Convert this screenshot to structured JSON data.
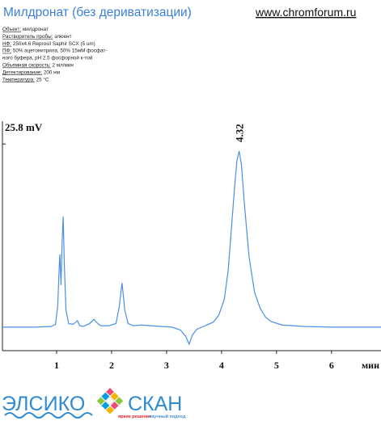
{
  "header": {
    "title": "Милдронат (без дериватизации)",
    "site": "www.chromforum.ru"
  },
  "method": {
    "lines": [
      {
        "label": "Объект:",
        "text": "милдронат"
      },
      {
        "label": "Растворитель пробы:",
        "text": "элюент"
      },
      {
        "label": "НФ:",
        "text": "250x4.6 Reprosil Saphir SCX (5 um)"
      },
      {
        "label": "ПФ:",
        "text": "50% ацетонитрила, 50% 15мМ фосфат-"
      },
      {
        "text": "ного буфера, pH 2.5 фосфорной к-той"
      },
      {
        "label": "Объемная скорость:",
        "text": "2 мл/мин"
      },
      {
        "label": "Детектирование:",
        "text": "200 нм"
      },
      {
        "label": "Температура:",
        "text": "25 °C"
      }
    ]
  },
  "chart_data": {
    "type": "line",
    "color": "#4a90e2",
    "x": [
      0,
      0.3,
      0.6,
      0.9,
      0.98,
      1.02,
      1.05,
      1.06,
      1.08,
      1.1,
      1.12,
      1.14,
      1.17,
      1.22,
      1.3,
      1.38,
      1.42,
      1.48,
      1.6,
      1.68,
      1.72,
      1.8,
      1.95,
      2.08,
      2.14,
      2.19,
      2.24,
      2.3,
      2.4,
      2.55,
      2.7,
      2.9,
      3.1,
      3.25,
      3.35,
      3.41,
      3.47,
      3.55,
      3.7,
      3.85,
      3.95,
      4.05,
      4.12,
      4.18,
      4.24,
      4.28,
      4.32,
      4.36,
      4.42,
      4.5,
      4.6,
      4.7,
      4.8,
      4.9,
      5.1,
      5.5,
      6.0,
      6.5,
      6.9
    ],
    "values": [
      0.1,
      0.1,
      0.1,
      0.2,
      0.5,
      3,
      9,
      10.3,
      6,
      12,
      15.6,
      9,
      2.5,
      0.6,
      0.5,
      1.0,
      0.3,
      0.2,
      0.6,
      1.2,
      0.8,
      0.3,
      0.3,
      0.6,
      3,
      6.3,
      2.5,
      0.6,
      0.3,
      0.4,
      0.3,
      0.2,
      0.1,
      -0.3,
      -1.2,
      -2.3,
      -1.0,
      -0.2,
      0.3,
      0.8,
      1.8,
      4,
      8,
      14,
      20,
      23.5,
      24.8,
      23,
      17,
      10,
      5,
      2.8,
      1.5,
      0.9,
      0.4,
      0.2,
      0.1,
      0.1,
      0.1
    ],
    "xlim": [
      0,
      6.9
    ],
    "xticks": [
      1,
      2,
      3,
      4,
      5,
      6
    ],
    "xlabel": "мин",
    "ylim": [
      -3.2,
      29
    ],
    "yticks": [
      {
        "value": 25.8,
        "label": "25.8 mV"
      }
    ],
    "peaks": [
      4.32
    ]
  },
  "footer": {
    "brand1": "ЭЛСИКО",
    "brand2": "СКАН",
    "slogan1": "яркие решения",
    "slogan2": "научный подход"
  }
}
